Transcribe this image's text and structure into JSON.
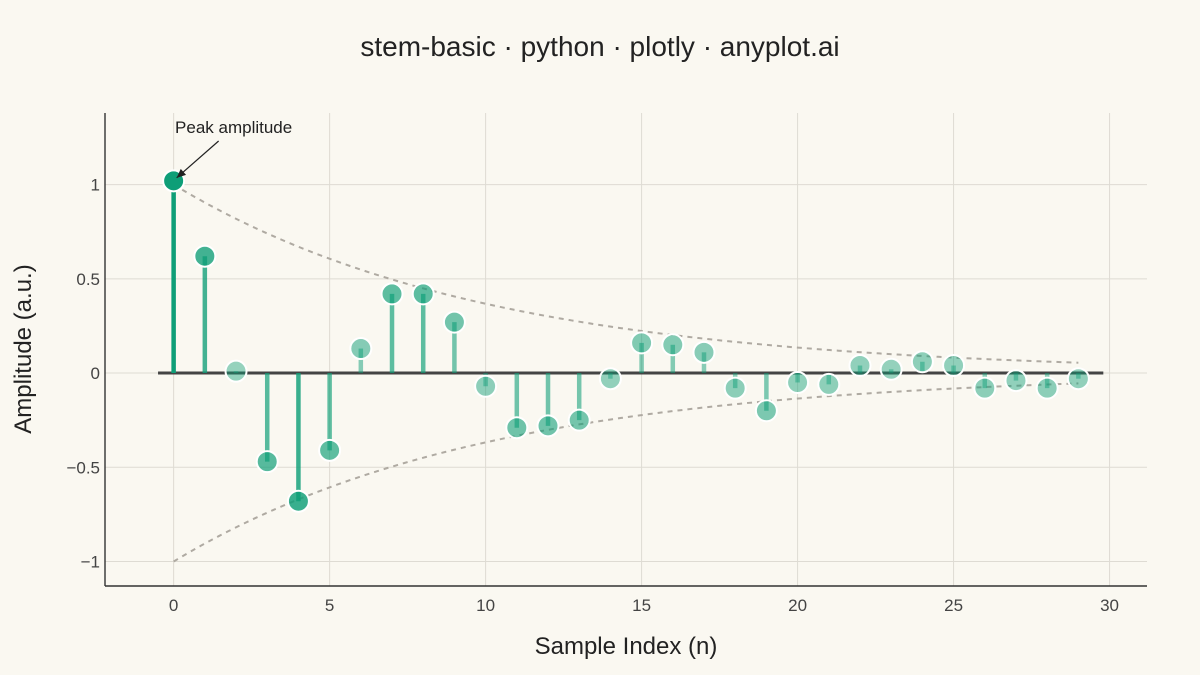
{
  "chart_data": {
    "type": "stem",
    "title": "stem-basic · python · plotly · anyplot.ai",
    "xlabel": "Sample Index (n)",
    "ylabel": "Amplitude (a.u.)",
    "xlim": [
      -2.2,
      31.2
    ],
    "ylim": [
      -1.13,
      1.38
    ],
    "xticks": [
      0,
      5,
      10,
      15,
      20,
      25,
      30
    ],
    "xtick_labels": [
      "0",
      "5",
      "10",
      "15",
      "20",
      "25",
      "30"
    ],
    "yticks": [
      -1,
      -0.5,
      0,
      0.5,
      1
    ],
    "ytick_labels": [
      "−1",
      "−0.5",
      "0",
      "0.5",
      "1"
    ],
    "grid": true,
    "color": "#0E9E77",
    "x": [
      0,
      1,
      2,
      3,
      4,
      5,
      6,
      7,
      8,
      9,
      10,
      11,
      12,
      13,
      14,
      15,
      16,
      17,
      18,
      19,
      20,
      21,
      22,
      23,
      24,
      25,
      26,
      27,
      28,
      29
    ],
    "y": [
      1.02,
      0.62,
      0.01,
      -0.47,
      -0.68,
      -0.41,
      0.13,
      0.42,
      0.42,
      0.27,
      -0.07,
      -0.29,
      -0.28,
      -0.25,
      -0.03,
      0.16,
      0.15,
      0.11,
      -0.08,
      -0.2,
      -0.05,
      -0.06,
      0.04,
      0.02,
      0.06,
      0.04,
      -0.08,
      -0.04,
      -0.08,
      -0.03
    ],
    "envelope": {
      "amplitude": 1.0,
      "decay": 0.1,
      "x_range": [
        0,
        29
      ]
    },
    "annotation": {
      "text": "Peak amplitude",
      "x": 0,
      "y": 1.02
    }
  }
}
